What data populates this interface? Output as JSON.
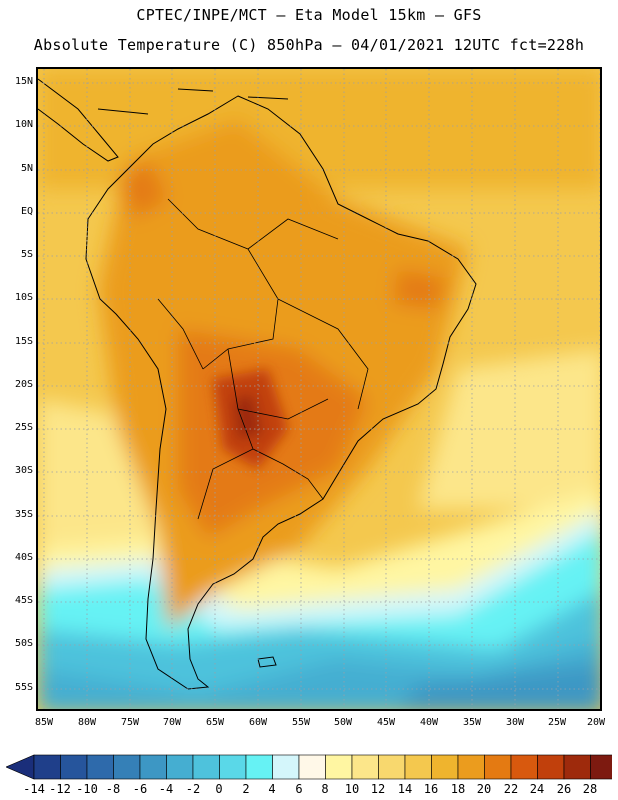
{
  "header": {
    "line1": "CPTEC/INPE/MCT —  Eta Model 15km — GFS",
    "line2": "Absolute Temperature (C) 850hPa — 04/01/2021 12UTC fct=228h"
  },
  "map": {
    "lat_labels": [
      "15N",
      "10N",
      "5N",
      "EQ",
      "5S",
      "10S",
      "15S",
      "20S",
      "25S",
      "30S",
      "35S",
      "40S",
      "45S",
      "50S",
      "55S"
    ],
    "lon_labels": [
      "85W",
      "80W",
      "75W",
      "70W",
      "65W",
      "60W",
      "55W",
      "50W",
      "45W",
      "40W",
      "35W",
      "30W",
      "25W",
      "20W"
    ]
  },
  "colorbar": {
    "labels": [
      "-14",
      "-12",
      "-10",
      "-8",
      "-6",
      "-4",
      "-2",
      "0",
      "2",
      "4",
      "6",
      "8",
      "10",
      "12",
      "14",
      "16",
      "18",
      "20",
      "22",
      "24",
      "26",
      "28"
    ],
    "colors": [
      "#1f3f8a",
      "#26559c",
      "#2e6aab",
      "#3580b7",
      "#3d97c4",
      "#45aed1",
      "#4ec2dc",
      "#5ad8e8",
      "#66f2f4",
      "#d4f6fb",
      "#fff8e8",
      "#fff6a2",
      "#fce68a",
      "#f8d86e",
      "#f4c84e",
      "#efb42e",
      "#eb9c1e",
      "#e47a12",
      "#d8590e",
      "#c1400c",
      "#9e2a0c",
      "#7d1a10"
    ],
    "over_color": "#6a0a1e",
    "under_color": "#1a2e7a"
  }
}
